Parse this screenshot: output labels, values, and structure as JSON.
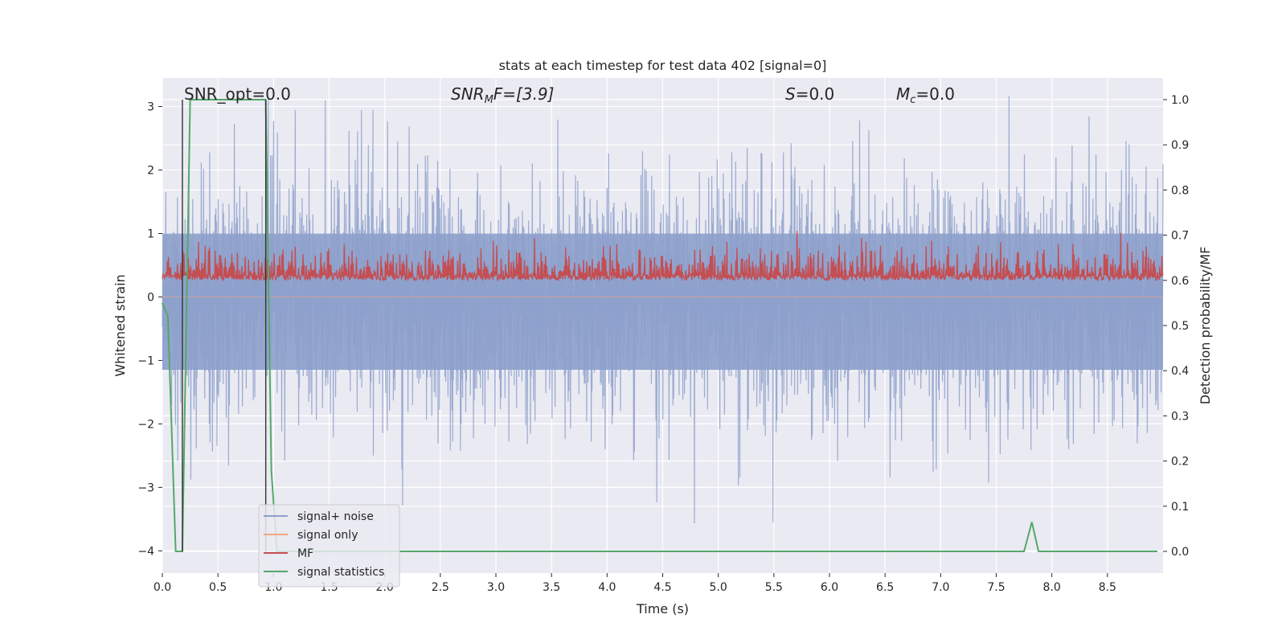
{
  "chart_data": {
    "type": "line",
    "title": "stats at each timestep for test data 402 [signal=0]",
    "xlabel": "Time (s)",
    "ylabel_left": "Whitened strain",
    "ylabel_right": "Detection probability/MF",
    "xlim": [
      0.0,
      9.0
    ],
    "ylim_left": [
      -4.35,
      3.45
    ],
    "ylim_right": [
      -0.048,
      1.048
    ],
    "x_ticks": [
      "0.0",
      "0.5",
      "1.0",
      "1.5",
      "2.0",
      "2.5",
      "3.0",
      "3.5",
      "4.0",
      "4.5",
      "5.0",
      "5.5",
      "6.0",
      "6.5",
      "7.0",
      "7.5",
      "8.0",
      "8.5"
    ],
    "y_left_ticks": [
      "3",
      "2",
      "1",
      "0",
      "−1",
      "−2",
      "−3",
      "−4"
    ],
    "y_right_ticks": [
      "1.0",
      "0.9",
      "0.8",
      "0.7",
      "0.6",
      "0.5",
      "0.4",
      "0.3",
      "0.2",
      "0.1",
      "0.0"
    ],
    "grid": true,
    "legend_position": "lower-left",
    "annotations": {
      "snr_opt": "SNR_opt=0.0",
      "snr_mf_sym": "SNR",
      "snr_mf_sub": "M",
      "snr_mf_rest": "F=[3.9]",
      "s_sym": "S",
      "s_rest": "=0.0",
      "mc_sym": "M",
      "mc_sub": "c",
      "mc_rest": "=0.0"
    },
    "series": [
      {
        "name": "signal+ noise",
        "axis": "left",
        "color": "#8da0cb",
        "description_values": "whitened noise, approximately zero mean, amplitude within about -3.9 to 3.1",
        "envelope_seed": 402
      },
      {
        "name": "signal only",
        "axis": "left",
        "color": "#f4a582",
        "values_constant": 0.0
      },
      {
        "name": "MF",
        "axis": "right",
        "color": "#c44e52",
        "description_values": "matched-filter output fluctuating between about 0.57 and 0.71 on the right axis"
      },
      {
        "name": "signal statistics",
        "axis": "right",
        "color": "#55a868",
        "x": [
          0.0,
          0.05,
          0.12,
          0.18,
          0.25,
          0.93,
          0.98,
          1.03,
          7.75,
          7.82,
          7.88,
          8.95
        ],
        "values": [
          0.55,
          0.52,
          0.0,
          0.0,
          1.0,
          1.0,
          0.18,
          0.0,
          0.0,
          0.065,
          0.0,
          0.0
        ]
      }
    ],
    "vertical_markers": {
      "color": "#333333",
      "x": [
        0.18,
        0.93
      ],
      "y_range_right": [
        0.0,
        1.0
      ]
    }
  }
}
